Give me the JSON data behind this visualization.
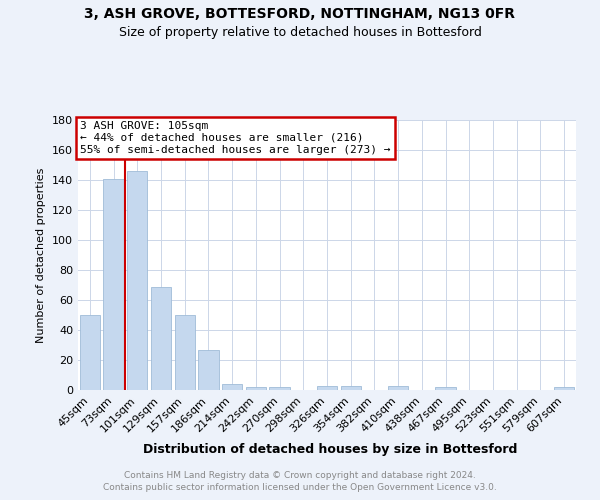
{
  "title": "3, ASH GROVE, BOTTESFORD, NOTTINGHAM, NG13 0FR",
  "subtitle": "Size of property relative to detached houses in Bottesford",
  "xlabel": "Distribution of detached houses by size in Bottesford",
  "ylabel": "Number of detached properties",
  "categories": [
    "45sqm",
    "73sqm",
    "101sqm",
    "129sqm",
    "157sqm",
    "186sqm",
    "214sqm",
    "242sqm",
    "270sqm",
    "298sqm",
    "326sqm",
    "354sqm",
    "382sqm",
    "410sqm",
    "438sqm",
    "467sqm",
    "495sqm",
    "523sqm",
    "551sqm",
    "579sqm",
    "607sqm"
  ],
  "values": [
    50,
    141,
    146,
    69,
    50,
    27,
    4,
    2,
    2,
    0,
    3,
    3,
    0,
    3,
    0,
    2,
    0,
    0,
    0,
    0,
    2
  ],
  "bar_color": "#c5d8ee",
  "bar_edge_color": "#a0bcd8",
  "red_line_x": 1.5,
  "annotation_text": "3 ASH GROVE: 105sqm\n← 44% of detached houses are smaller (216)\n55% of semi-detached houses are larger (273) →",
  "annotation_box_edgecolor": "#cc0000",
  "ylim": [
    0,
    180
  ],
  "yticks": [
    0,
    20,
    40,
    60,
    80,
    100,
    120,
    140,
    160,
    180
  ],
  "footer_line1": "Contains HM Land Registry data © Crown copyright and database right 2024.",
  "footer_line2": "Contains public sector information licensed under the Open Government Licence v3.0.",
  "bg_color": "#edf2fa",
  "plot_bg_color": "#ffffff",
  "grid_color": "#ccd6e8",
  "title_fontsize": 10,
  "subtitle_fontsize": 9,
  "ylabel_fontsize": 8,
  "tick_fontsize": 8,
  "annotation_fontsize": 8,
  "xlabel_fontsize": 9,
  "footer_fontsize": 6.5,
  "footer_color": "#888888"
}
